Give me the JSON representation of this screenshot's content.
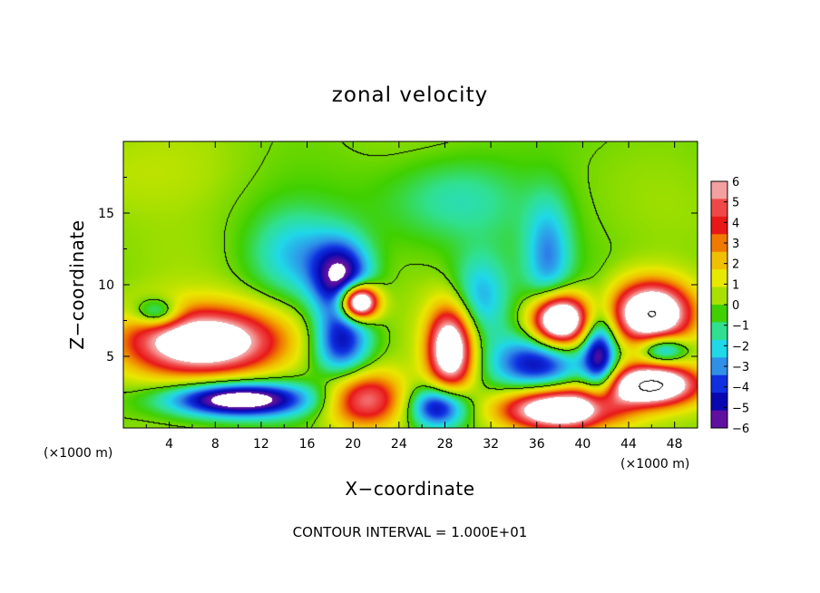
{
  "chart_data": {
    "type": "heatmap",
    "title": "zonal velocity",
    "xlabel": "X−coordinate",
    "ylabel": "Z−coordinate",
    "x_unit_left": "(×1000 m)",
    "x_unit_right": "(×1000 m)",
    "footer": "CONTOUR INTERVAL = 1.000E+01",
    "xlim": [
      0,
      50
    ],
    "ylim": [
      0,
      20
    ],
    "x_ticks": [
      "4",
      "8",
      "12",
      "16",
      "20",
      "24",
      "28",
      "32",
      "36",
      "40",
      "44",
      "48"
    ],
    "y_ticks": [
      "5",
      "10",
      "15"
    ],
    "colorbar": {
      "range": [
        -6,
        6
      ],
      "labels": [
        "6",
        "5",
        "4",
        "3",
        "2",
        "1",
        "0",
        "−1",
        "−2",
        "−3",
        "−4",
        "−5",
        "−6"
      ],
      "colors": [
        "#f4a0a0",
        "#f04848",
        "#e81818",
        "#f07a00",
        "#f0c000",
        "#e8e800",
        "#a8e000",
        "#40d000",
        "#30e090",
        "#20d8e8",
        "#3090e8",
        "#1030e0",
        "#0808b0",
        "#6010a0"
      ]
    },
    "field": {
      "description_free": true,
      "saturated_color": "#ffffff",
      "features": [
        {
          "x": 7,
          "z": 6,
          "amp": 9,
          "rx": 7,
          "rz": 2.4
        },
        {
          "x": 10,
          "z": 2,
          "amp": -8,
          "rx": 6,
          "rz": 1.2
        },
        {
          "x": 19,
          "z": 10.5,
          "amp": -6,
          "rx": 2.5,
          "rz": 2.5
        },
        {
          "x": 20.5,
          "z": 8.8,
          "amp": 12,
          "rx": 1.6,
          "rz": 1.2
        },
        {
          "x": 19,
          "z": 6,
          "amp": -5,
          "rx": 2.5,
          "rz": 2.5
        },
        {
          "x": 21,
          "z": 2,
          "amp": 6,
          "rx": 3.5,
          "rz": 2
        },
        {
          "x": 28.5,
          "z": 5.5,
          "amp": 9,
          "rx": 2,
          "rz": 3
        },
        {
          "x": 27.5,
          "z": 1.5,
          "amp": -6,
          "rx": 2.5,
          "rz": 1.5
        },
        {
          "x": 31,
          "z": 9,
          "amp": -3,
          "rx": 2.5,
          "rz": 3
        },
        {
          "x": 37,
          "z": 12,
          "amp": -3,
          "rx": 2,
          "rz": 4
        },
        {
          "x": 38,
          "z": 7.5,
          "amp": 11,
          "rx": 2.4,
          "rz": 1.8
        },
        {
          "x": 36,
          "z": 4.5,
          "amp": -5,
          "rx": 4,
          "rz": 2
        },
        {
          "x": 38,
          "z": 1.3,
          "amp": 10,
          "rx": 5,
          "rz": 1.5
        },
        {
          "x": 46,
          "z": 8,
          "amp": 10,
          "rx": 3.5,
          "rz": 2.2
        },
        {
          "x": 46,
          "z": 3,
          "amp": 10,
          "rx": 4,
          "rz": 1.4
        },
        {
          "x": 41.5,
          "z": 5,
          "amp": -6,
          "rx": 1.5,
          "rz": 3
        },
        {
          "x": 47,
          "z": 5.5,
          "amp": -5,
          "rx": 2,
          "rz": 1
        },
        {
          "x": 3,
          "z": 8,
          "amp": -4,
          "rx": 2,
          "rz": 1
        },
        {
          "x": 15,
          "z": 12,
          "amp": -2.5,
          "rx": 4,
          "rz": 3
        },
        {
          "x": 29,
          "z": 16,
          "amp": -1.8,
          "rx": 6,
          "rz": 3
        },
        {
          "x": 0,
          "z": 18,
          "amp": 0.8,
          "rx": 10,
          "rz": 3
        }
      ]
    }
  }
}
